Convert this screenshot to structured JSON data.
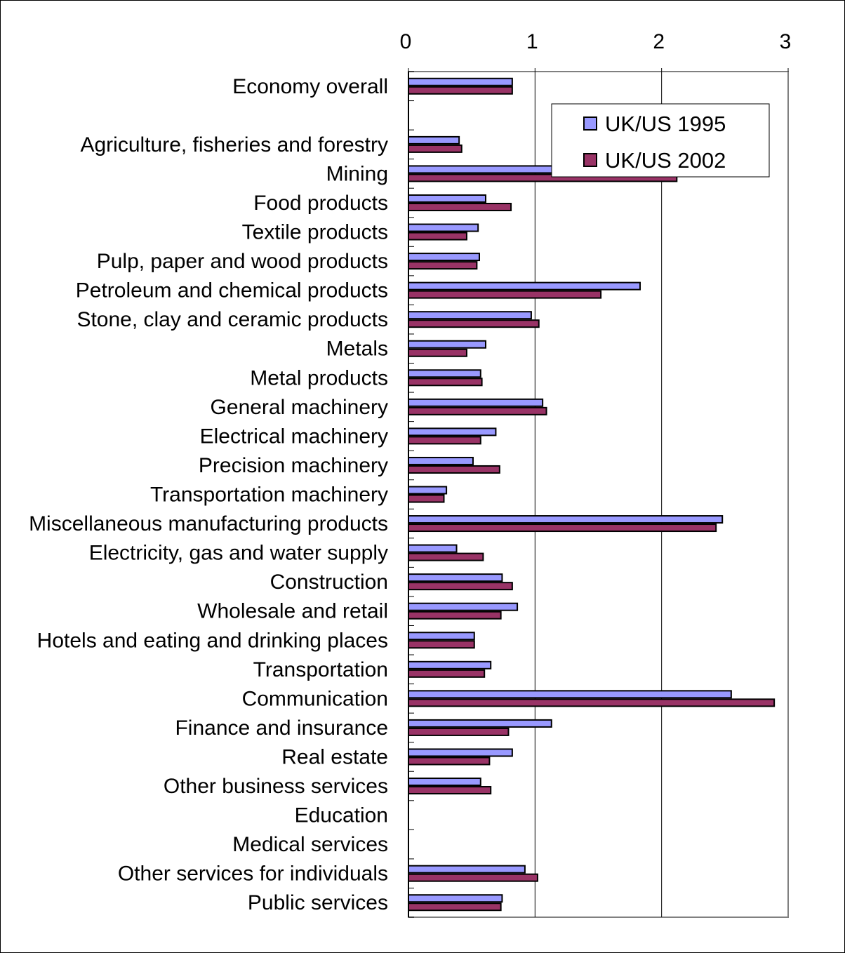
{
  "chart_data": {
    "type": "bar",
    "orientation": "horizontal",
    "title": "",
    "xlabel": "",
    "ylabel": "",
    "xlim": [
      0,
      3
    ],
    "xticks": [
      "0",
      "1",
      "2",
      "3"
    ],
    "x_axis_position": "top",
    "grid": "vertical",
    "legend_position": "top-right",
    "categories": [
      "Economy overall",
      "",
      "Agriculture, fisheries and forestry",
      "Mining",
      "Food products",
      "Textile products",
      "Pulp, paper and wood products",
      "Petroleum and chemical products",
      "Stone, clay and ceramic products",
      "Metals",
      "Metal products",
      "General machinery",
      "Electrical machinery",
      "Precision machinery",
      "Transportation machinery",
      "Miscellaneous manufacturing products",
      "Electricity, gas and water supply",
      "Construction",
      "Wholesale and retail",
      "Hotels and eating and drinking places",
      "Transportation",
      "Communication",
      "Finance and insurance",
      "Real estate",
      "Other business services",
      "Education",
      "Medical services",
      "Other services for individuals",
      "Public services"
    ],
    "series": [
      {
        "name": "UK/US 1995",
        "color": "#9999ff",
        "values": [
          0.82,
          null,
          0.4,
          1.3,
          0.61,
          0.55,
          0.56,
          1.83,
          0.97,
          0.61,
          0.57,
          1.06,
          0.69,
          0.51,
          0.3,
          2.48,
          0.38,
          0.74,
          0.86,
          0.52,
          0.65,
          2.55,
          1.13,
          0.82,
          0.57,
          null,
          null,
          0.92,
          0.74
        ]
      },
      {
        "name": "UK/US 2002",
        "color": "#993366",
        "values": [
          0.82,
          null,
          0.42,
          2.12,
          0.81,
          0.46,
          0.54,
          1.52,
          1.03,
          0.46,
          0.58,
          1.09,
          0.57,
          0.72,
          0.28,
          2.43,
          0.59,
          0.82,
          0.73,
          0.52,
          0.6,
          2.89,
          0.79,
          0.64,
          0.65,
          null,
          null,
          1.02,
          0.73
        ]
      }
    ]
  }
}
